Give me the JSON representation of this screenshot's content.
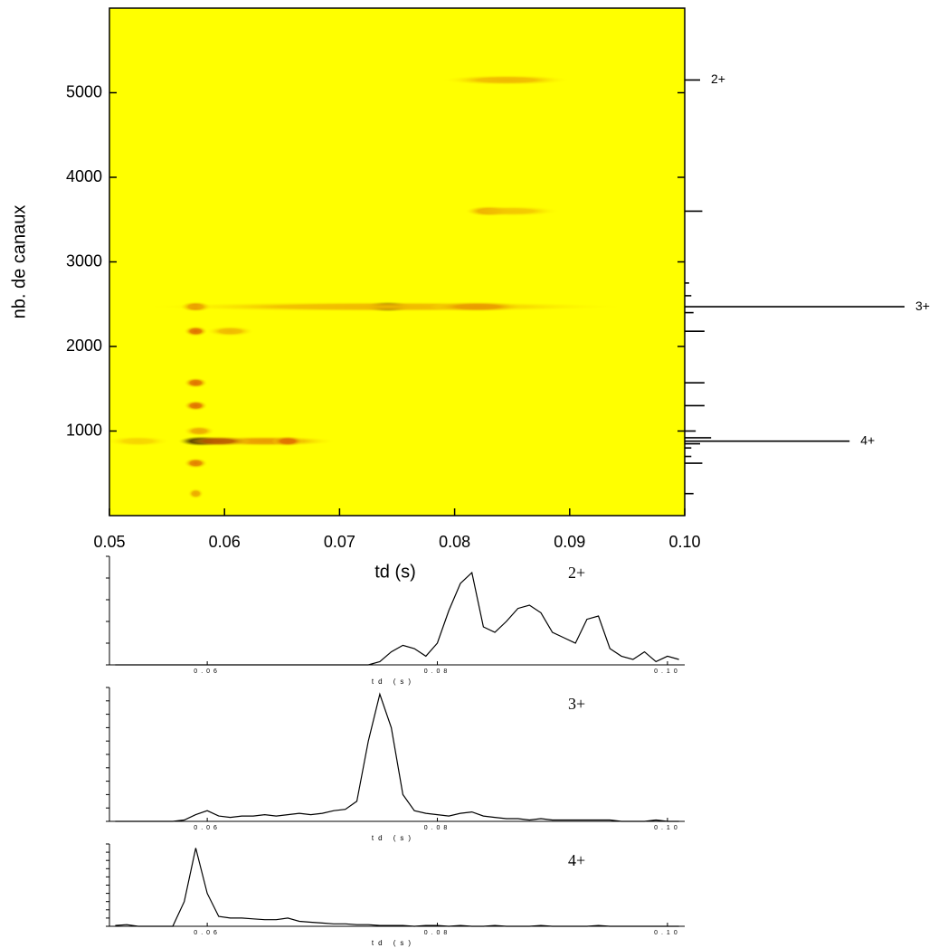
{
  "chart_data": [
    {
      "type": "heatmap",
      "xlabel": "td (s)",
      "ylabel": "nb. de canaux",
      "xlim": [
        0.05,
        0.1
      ],
      "ylim": [
        0,
        6000
      ],
      "xticks": [
        0.05,
        0.06,
        0.07,
        0.08,
        0.09,
        {
          "value": 0.1,
          "label": "0.10"
        }
      ],
      "yticks": [
        1000,
        2000,
        3000,
        4000,
        5000
      ],
      "background": "#ffff00",
      "colormap": [
        "#ffff00",
        "#e07000",
        "#200000"
      ],
      "spots": {
        "x": [
          0.058,
          0.0742,
          0.0635,
          0.0655,
          0.0575,
          0.0575,
          0.0575,
          0.0575,
          0.0575,
          0.0575,
          0.0578,
          0.074,
          0.082,
          0.083,
          0.085,
          0.0845,
          0.0595,
          0.0605,
          0.0525
        ],
        "y": [
          880,
          2470,
          880,
          880,
          2470,
          2180,
          1570,
          1300,
          620,
          260,
          1000,
          2470,
          2470,
          3600,
          3600,
          5150,
          880,
          2180,
          880
        ],
        "intensity": [
          1,
          1,
          0.35,
          0.5,
          0.45,
          0.5,
          0.5,
          0.5,
          0.45,
          0.3,
          0.3,
          0.25,
          0.35,
          0.45,
          0.2,
          0.25,
          0.6,
          0.25,
          0.15
        ],
        "width": [
          0.003,
          0.003,
          0.009,
          0.002,
          0.002,
          0.0015,
          0.0015,
          0.0015,
          0.0015,
          0.001,
          0.002,
          0.03,
          0.006,
          0.003,
          0.006,
          0.008,
          0.004,
          0.003,
          0.004
        ]
      }
    },
    {
      "type": "profile",
      "xlim": [
        0,
        100
      ],
      "ylim": [
        0,
        6000
      ],
      "color": "#000000",
      "y": [
        5150,
        3600,
        2470,
        2180,
        1570,
        1300,
        1000,
        920,
        880,
        850,
        620,
        260,
        2750,
        2600,
        2400,
        800,
        700
      ],
      "values": [
        7,
        8,
        100,
        9,
        9,
        9,
        5,
        12,
        75,
        7,
        8,
        4,
        2,
        3,
        4,
        3,
        3
      ],
      "annotations": [
        {
          "text": "2+",
          "y": 5150
        },
        {
          "text": "3+",
          "y": 2470
        },
        {
          "text": "4+",
          "y": 880
        }
      ]
    },
    {
      "type": "line",
      "annotation": "2+",
      "xlabel": "td (s)",
      "color": "#000000",
      "xlim": [
        0.0515,
        0.1015
      ],
      "ylim": [
        0,
        100
      ],
      "yticks": [
        0,
        20,
        40,
        60,
        80,
        100
      ],
      "xticks": [
        0.06,
        0.08,
        {
          "value": 0.1,
          "label": "0.10"
        }
      ],
      "x": [
        0.052,
        0.053,
        0.054,
        0.055,
        0.056,
        0.057,
        0.058,
        0.059,
        0.06,
        0.061,
        0.062,
        0.063,
        0.064,
        0.065,
        0.066,
        0.067,
        0.068,
        0.069,
        0.07,
        0.071,
        0.072,
        0.073,
        0.074,
        0.075,
        0.076,
        0.077,
        0.078,
        0.079,
        0.08,
        0.081,
        0.082,
        0.083,
        0.084,
        0.085,
        0.086,
        0.087,
        0.088,
        0.089,
        0.09,
        0.091,
        0.092,
        0.093,
        0.094,
        0.095,
        0.096,
        0.097,
        0.098,
        0.099,
        0.1,
        0.101
      ],
      "values": [
        0,
        0,
        0,
        0,
        0,
        0,
        0,
        0,
        0,
        0,
        0,
        0,
        0,
        0,
        0,
        0,
        0,
        0,
        0,
        0,
        0,
        0,
        0,
        3,
        12,
        18,
        15,
        8,
        20,
        50,
        75,
        85,
        35,
        30,
        40,
        52,
        55,
        48,
        30,
        25,
        20,
        42,
        45,
        15,
        8,
        5,
        12,
        3,
        8,
        5
      ]
    },
    {
      "type": "line",
      "annotation": "3+",
      "xlabel": "td (s)",
      "color": "#000000",
      "xlim": [
        0.0515,
        0.1015
      ],
      "ylim": [
        0,
        100
      ],
      "yticks": [
        0,
        10,
        20,
        30,
        40,
        50,
        60,
        70,
        80,
        90,
        100
      ],
      "xticks": [
        0.06,
        0.08,
        {
          "value": 0.1,
          "label": "0.10"
        }
      ],
      "x": [
        0.052,
        0.053,
        0.054,
        0.055,
        0.056,
        0.057,
        0.058,
        0.059,
        0.06,
        0.061,
        0.062,
        0.063,
        0.064,
        0.065,
        0.066,
        0.067,
        0.068,
        0.069,
        0.07,
        0.071,
        0.072,
        0.073,
        0.074,
        0.075,
        0.076,
        0.077,
        0.078,
        0.079,
        0.08,
        0.081,
        0.082,
        0.083,
        0.084,
        0.085,
        0.086,
        0.087,
        0.088,
        0.089,
        0.09,
        0.091,
        0.092,
        0.093,
        0.094,
        0.095,
        0.096,
        0.097,
        0.098,
        0.099,
        0.1,
        0.101
      ],
      "values": [
        0,
        0,
        0,
        0,
        0,
        0,
        1,
        5,
        8,
        4,
        3,
        4,
        4,
        5,
        4,
        5,
        6,
        5,
        6,
        8,
        9,
        15,
        60,
        95,
        70,
        20,
        8,
        6,
        5,
        4,
        6,
        7,
        4,
        3,
        2,
        2,
        1,
        2,
        1,
        1,
        1,
        1,
        1,
        1,
        0,
        0,
        0,
        1,
        0,
        0
      ]
    },
    {
      "type": "line",
      "annotation": "4+",
      "xlabel": "td (s)",
      "color": "#000000",
      "xlim": [
        0.0515,
        0.1015
      ],
      "ylim": [
        0,
        100
      ],
      "yticks": [
        0,
        10,
        20,
        30,
        40,
        50,
        60,
        70,
        80,
        90,
        100
      ],
      "xticks": [
        0.06,
        0.08,
        {
          "value": 0.1,
          "label": "0.10"
        }
      ],
      "x": [
        0.052,
        0.053,
        0.054,
        0.055,
        0.056,
        0.057,
        0.058,
        0.059,
        0.06,
        0.061,
        0.062,
        0.063,
        0.064,
        0.065,
        0.066,
        0.067,
        0.068,
        0.069,
        0.07,
        0.071,
        0.072,
        0.073,
        0.074,
        0.075,
        0.076,
        0.077,
        0.078,
        0.079,
        0.08,
        0.081,
        0.082,
        0.083,
        0.084,
        0.085,
        0.086,
        0.087,
        0.088,
        0.089,
        0.09,
        0.091,
        0.092,
        0.093,
        0.094,
        0.095,
        0.096,
        0.097,
        0.098,
        0.099,
        0.1,
        0.101
      ],
      "values": [
        1,
        2,
        0,
        0,
        0,
        0,
        30,
        95,
        40,
        12,
        10,
        10,
        9,
        8,
        8,
        10,
        6,
        5,
        4,
        3,
        3,
        2,
        2,
        1,
        1,
        1,
        0,
        1,
        1,
        0,
        1,
        0,
        0,
        1,
        0,
        0,
        0,
        1,
        0,
        0,
        0,
        0,
        1,
        0,
        0,
        0,
        0,
        0,
        0,
        0
      ]
    }
  ]
}
